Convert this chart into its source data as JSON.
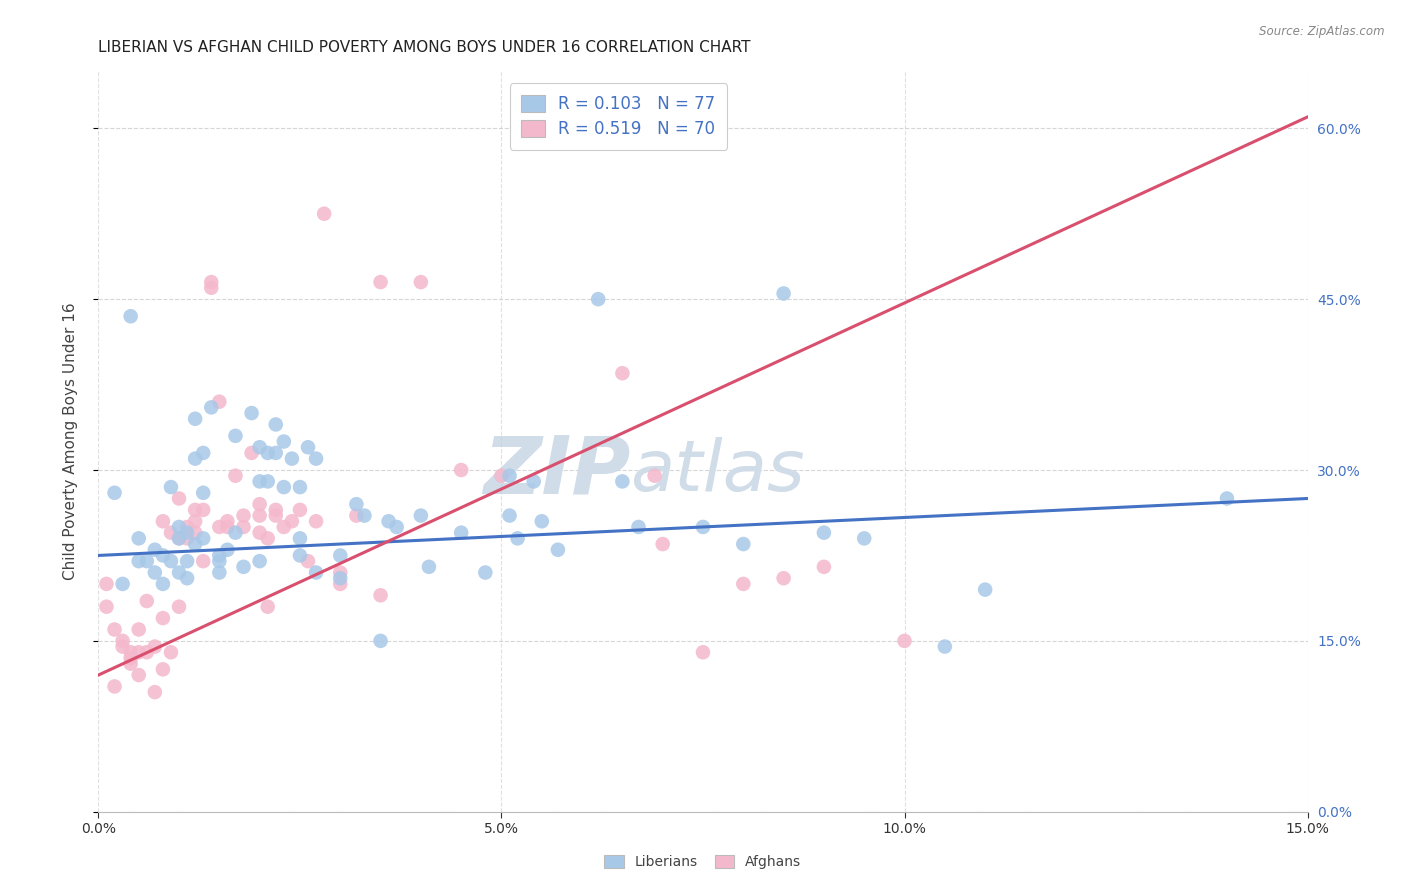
{
  "title": "LIBERIAN VS AFGHAN CHILD POVERTY AMONG BOYS UNDER 16 CORRELATION CHART",
  "source": "Source: ZipAtlas.com",
  "xlabel_ticks": [
    "0.0%",
    "5.0%",
    "10.0%",
    "15.0%"
  ],
  "xlabel_tick_vals": [
    0.0,
    5.0,
    10.0,
    15.0
  ],
  "ylabel_ticks": [
    "0.0%",
    "15.0%",
    "30.0%",
    "45.0%",
    "60.0%"
  ],
  "ylabel_tick_vals": [
    0.0,
    15.0,
    30.0,
    45.0,
    60.0
  ],
  "xmin": 0.0,
  "xmax": 15.0,
  "ymin": 0.0,
  "ymax": 65.0,
  "watermark_line1": "ZIP",
  "watermark_line2": "atlas",
  "legend_label1": "Liberians",
  "legend_label2": "Afghans",
  "R1": 0.103,
  "N1": 77,
  "R2": 0.519,
  "N2": 70,
  "color_blue": "#a8c8e8",
  "color_pink": "#f4b8cc",
  "trendline_blue": "#4472c4",
  "trendline_pink": "#d94f6e",
  "ylabel": "Child Poverty Among Boys Under 16",
  "scatter_blue": [
    [
      0.2,
      28.0
    ],
    [
      0.3,
      20.0
    ],
    [
      0.4,
      43.5
    ],
    [
      0.5,
      22.0
    ],
    [
      0.5,
      24.0
    ],
    [
      0.6,
      22.0
    ],
    [
      0.7,
      23.0
    ],
    [
      0.7,
      21.0
    ],
    [
      0.8,
      20.0
    ],
    [
      0.8,
      22.5
    ],
    [
      0.9,
      28.5
    ],
    [
      0.9,
      22.0
    ],
    [
      1.0,
      25.0
    ],
    [
      1.0,
      21.0
    ],
    [
      1.0,
      24.0
    ],
    [
      1.1,
      22.0
    ],
    [
      1.1,
      20.5
    ],
    [
      1.1,
      24.5
    ],
    [
      1.2,
      34.5
    ],
    [
      1.2,
      31.0
    ],
    [
      1.2,
      23.5
    ],
    [
      1.3,
      24.0
    ],
    [
      1.3,
      31.5
    ],
    [
      1.3,
      28.0
    ],
    [
      1.4,
      35.5
    ],
    [
      1.5,
      22.0
    ],
    [
      1.5,
      22.5
    ],
    [
      1.5,
      21.0
    ],
    [
      1.6,
      23.0
    ],
    [
      1.7,
      33.0
    ],
    [
      1.7,
      24.5
    ],
    [
      1.8,
      21.5
    ],
    [
      1.9,
      35.0
    ],
    [
      2.0,
      32.0
    ],
    [
      2.0,
      29.0
    ],
    [
      2.0,
      22.0
    ],
    [
      2.1,
      31.5
    ],
    [
      2.1,
      29.0
    ],
    [
      2.2,
      31.5
    ],
    [
      2.2,
      34.0
    ],
    [
      2.3,
      32.5
    ],
    [
      2.3,
      28.5
    ],
    [
      2.4,
      31.0
    ],
    [
      2.5,
      22.5
    ],
    [
      2.5,
      24.0
    ],
    [
      2.5,
      28.5
    ],
    [
      2.6,
      32.0
    ],
    [
      2.7,
      21.0
    ],
    [
      2.7,
      31.0
    ],
    [
      3.0,
      22.5
    ],
    [
      3.0,
      20.5
    ],
    [
      3.2,
      27.0
    ],
    [
      3.3,
      26.0
    ],
    [
      3.5,
      15.0
    ],
    [
      3.6,
      25.5
    ],
    [
      3.7,
      25.0
    ],
    [
      4.0,
      26.0
    ],
    [
      4.1,
      21.5
    ],
    [
      4.5,
      24.5
    ],
    [
      4.8,
      21.0
    ],
    [
      5.1,
      29.5
    ],
    [
      5.1,
      26.0
    ],
    [
      5.2,
      24.0
    ],
    [
      5.4,
      29.0
    ],
    [
      5.5,
      25.5
    ],
    [
      5.7,
      23.0
    ],
    [
      6.2,
      45.0
    ],
    [
      6.5,
      29.0
    ],
    [
      6.7,
      25.0
    ],
    [
      7.5,
      25.0
    ],
    [
      8.0,
      23.5
    ],
    [
      8.5,
      45.5
    ],
    [
      9.0,
      24.5
    ],
    [
      9.5,
      24.0
    ],
    [
      10.5,
      14.5
    ],
    [
      11.0,
      19.5
    ],
    [
      14.0,
      27.5
    ]
  ],
  "scatter_pink": [
    [
      0.1,
      20.0
    ],
    [
      0.1,
      18.0
    ],
    [
      0.2,
      11.0
    ],
    [
      0.2,
      16.0
    ],
    [
      0.3,
      15.0
    ],
    [
      0.3,
      14.5
    ],
    [
      0.4,
      13.0
    ],
    [
      0.4,
      14.0
    ],
    [
      0.4,
      13.5
    ],
    [
      0.5,
      14.0
    ],
    [
      0.5,
      16.0
    ],
    [
      0.5,
      12.0
    ],
    [
      0.6,
      14.0
    ],
    [
      0.6,
      18.5
    ],
    [
      0.7,
      10.5
    ],
    [
      0.7,
      14.5
    ],
    [
      0.8,
      12.5
    ],
    [
      0.8,
      17.0
    ],
    [
      0.8,
      25.5
    ],
    [
      0.9,
      14.0
    ],
    [
      0.9,
      24.5
    ],
    [
      1.0,
      27.5
    ],
    [
      1.0,
      18.0
    ],
    [
      1.0,
      24.0
    ],
    [
      1.1,
      24.0
    ],
    [
      1.1,
      25.0
    ],
    [
      1.2,
      24.5
    ],
    [
      1.2,
      25.5
    ],
    [
      1.2,
      26.5
    ],
    [
      1.3,
      26.5
    ],
    [
      1.3,
      22.0
    ],
    [
      1.4,
      46.0
    ],
    [
      1.4,
      46.5
    ],
    [
      1.5,
      36.0
    ],
    [
      1.5,
      25.0
    ],
    [
      1.6,
      25.0
    ],
    [
      1.6,
      25.5
    ],
    [
      1.7,
      29.5
    ],
    [
      1.8,
      26.0
    ],
    [
      1.8,
      25.0
    ],
    [
      1.9,
      31.5
    ],
    [
      2.0,
      27.0
    ],
    [
      2.0,
      26.0
    ],
    [
      2.0,
      24.5
    ],
    [
      2.1,
      24.0
    ],
    [
      2.1,
      18.0
    ],
    [
      2.2,
      26.5
    ],
    [
      2.2,
      26.0
    ],
    [
      2.3,
      25.0
    ],
    [
      2.4,
      25.5
    ],
    [
      2.5,
      26.5
    ],
    [
      2.6,
      22.0
    ],
    [
      2.7,
      25.5
    ],
    [
      2.8,
      52.5
    ],
    [
      3.0,
      20.0
    ],
    [
      3.0,
      21.0
    ],
    [
      3.2,
      26.0
    ],
    [
      3.5,
      46.5
    ],
    [
      3.5,
      19.0
    ],
    [
      4.0,
      46.5
    ],
    [
      4.5,
      30.0
    ],
    [
      5.0,
      29.5
    ],
    [
      6.5,
      38.5
    ],
    [
      6.9,
      29.5
    ],
    [
      7.0,
      23.5
    ],
    [
      7.5,
      14.0
    ],
    [
      8.0,
      20.0
    ],
    [
      8.5,
      20.5
    ],
    [
      9.0,
      21.5
    ],
    [
      10.0,
      15.0
    ]
  ],
  "trendline1_x": [
    0.0,
    15.0
  ],
  "trendline1_y": [
    22.5,
    27.5
  ],
  "trendline2_x": [
    0.0,
    15.0
  ],
  "trendline2_y": [
    12.0,
    61.0
  ],
  "background_color": "#ffffff",
  "grid_color": "#cccccc",
  "watermark_color": "#d0dce8",
  "right_axis_label_color": "#4472c4",
  "title_fontsize": 11,
  "axis_label_fontsize": 10,
  "tick_fontsize": 9
}
